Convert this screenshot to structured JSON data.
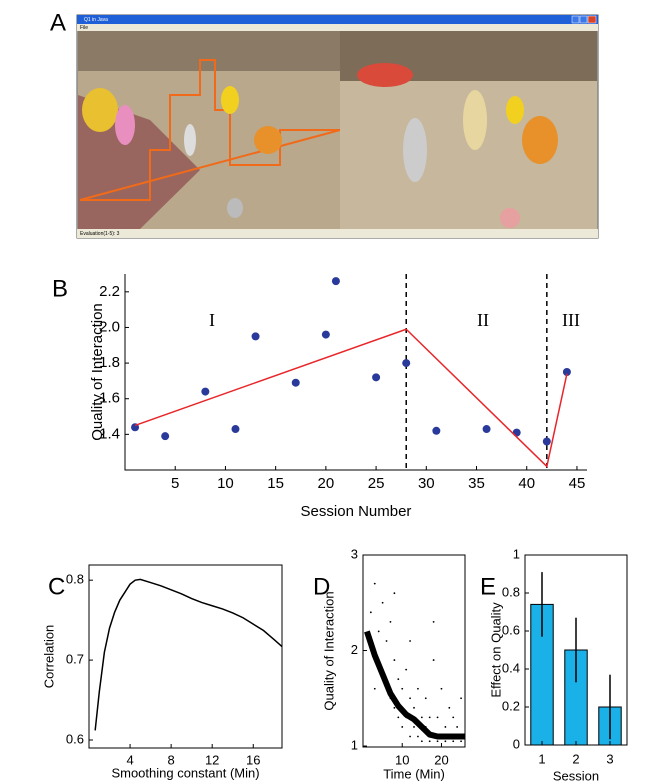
{
  "panel_labels": [
    "A",
    "B",
    "C",
    "D",
    "E"
  ],
  "screenshot": {
    "window_title": "Q1 in Java",
    "menu": "File",
    "status": "Evaluation(1-5): 3"
  },
  "chart_data": [
    {
      "type": "scatter",
      "x_label": "Session Number",
      "y_label": "Quality of Interaction",
      "xlim": [
        0,
        46
      ],
      "ylim": [
        1.2,
        2.3
      ],
      "xticks": [
        5,
        10,
        15,
        20,
        25,
        30,
        35,
        40,
        45
      ],
      "yticks": [
        1.4,
        1.6,
        1.8,
        {
          "value": 2,
          "label": "2.0"
        },
        2.2
      ],
      "points": {
        "color": "#2a3a9a",
        "x": [
          1,
          4,
          8,
          11,
          13,
          17,
          20,
          21,
          25,
          28,
          31,
          36,
          39,
          42,
          44
        ],
        "y": [
          1.44,
          1.39,
          1.64,
          1.43,
          1.95,
          1.69,
          1.96,
          2.26,
          1.72,
          1.8,
          1.42,
          1.43,
          1.41,
          1.36,
          1.75
        ]
      },
      "trend": {
        "color": "#e8262a",
        "x": [
          1,
          28,
          42,
          44
        ],
        "y": [
          1.45,
          1.99,
          1.22,
          1.74
        ]
      },
      "vlines": [
        28,
        42
      ],
      "annotations": [
        "I",
        "II",
        "III"
      ]
    },
    {
      "type": "line",
      "x_label": "Smoothing constant (Min)",
      "y_label": "Correlation",
      "xlim": [
        0,
        18.8
      ],
      "ylim": [
        0.59,
        0.819
      ],
      "xticks": [
        4,
        8,
        12,
        16
      ],
      "yticks": [
        0.6,
        0.7,
        0.8
      ],
      "color": "#000000",
      "x": [
        0.6,
        1,
        1.5,
        2,
        2.5,
        3,
        3.5,
        4,
        4.5,
        5,
        6,
        7,
        8,
        9,
        10,
        11,
        12,
        13,
        14,
        15,
        16,
        17,
        18,
        18.8
      ],
      "values": [
        0.612,
        0.66,
        0.71,
        0.74,
        0.76,
        0.775,
        0.785,
        0.795,
        0.8,
        0.801,
        0.797,
        0.793,
        0.788,
        0.783,
        0.777,
        0.772,
        0.768,
        0.764,
        0.759,
        0.753,
        0.745,
        0.737,
        0.726,
        0.717
      ]
    },
    {
      "type": "scatter",
      "x_label": "Time (Min)",
      "y_label": "Quality of Interaction",
      "xlim": [
        0,
        26
      ],
      "ylim": [
        0.99,
        3
      ],
      "xticks": [
        10,
        20
      ],
      "yticks": [
        1,
        2,
        3
      ],
      "points": {
        "color": "#000000",
        "x": [
          2,
          3,
          3,
          4,
          5,
          5,
          6,
          6,
          7,
          7,
          8,
          8,
          9,
          9,
          10,
          10,
          11,
          11,
          12,
          12,
          13,
          13,
          14,
          14,
          15,
          15,
          16,
          16,
          17,
          17,
          18,
          18,
          19,
          19,
          20,
          20,
          21,
          21,
          22,
          22,
          23,
          23,
          24,
          24,
          25,
          25,
          3,
          8,
          12,
          18
        ],
        "y": [
          2.4,
          2.7,
          1.9,
          2.2,
          1.8,
          2.5,
          1.6,
          2.1,
          1.5,
          2.3,
          1.4,
          1.9,
          1.3,
          1.7,
          1.2,
          1.6,
          1.3,
          1.8,
          1.1,
          1.5,
          1.2,
          1.4,
          1.1,
          1.6,
          1.05,
          1.3,
          1.2,
          1.5,
          1.05,
          1.3,
          1.1,
          1.9,
          1.05,
          1.3,
          1.1,
          1.6,
          1.05,
          1.2,
          1.1,
          1.4,
          1.05,
          1.3,
          1.1,
          1.2,
          1.05,
          1.5,
          1.6,
          2.6,
          2.1,
          2.3
        ]
      },
      "trend": {
        "color": "#000000",
        "x": [
          1,
          3,
          5,
          7,
          9,
          11,
          13,
          15,
          17,
          19,
          21,
          24,
          26
        ],
        "y": [
          2.2,
          1.95,
          1.75,
          1.55,
          1.42,
          1.33,
          1.28,
          1.2,
          1.12,
          1.1,
          1.1,
          1.1,
          1.1
        ]
      }
    },
    {
      "type": "bar",
      "x_label": "Session",
      "y_label": "Effect on Quality",
      "ylim": [
        0,
        1
      ],
      "yticks": [
        0,
        0.2,
        0.4,
        0.6,
        0.8,
        1
      ],
      "categories": [
        "1",
        "2",
        "3"
      ],
      "values": [
        0.74,
        0.5,
        0.2
      ],
      "errors": [
        0.17,
        0.17,
        0.17
      ],
      "color": "#1ab0e8"
    }
  ]
}
